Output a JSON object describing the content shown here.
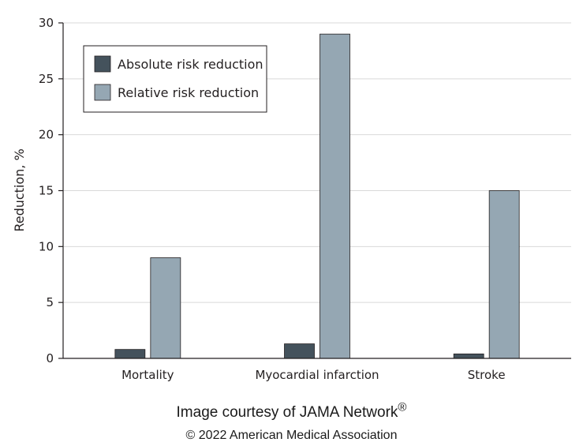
{
  "chart_data": {
    "type": "bar",
    "title": "",
    "xlabel": "",
    "ylabel": "Reduction, %",
    "ylim": [
      0,
      30
    ],
    "yticks": [
      0,
      5,
      10,
      15,
      20,
      25,
      30
    ],
    "categories": [
      "Mortality",
      "Myocardial infarction",
      "Stroke"
    ],
    "series": [
      {
        "name": "Absolute risk reduction",
        "values": [
          0.8,
          1.3,
          0.4
        ],
        "color": "#44525c"
      },
      {
        "name": "Relative risk reduction",
        "values": [
          9,
          29,
          15
        ],
        "color": "#95a7b3"
      }
    ],
    "grid": true,
    "legend": "top-left"
  },
  "credits": {
    "line1": "Image courtesy of JAMA Network",
    "line1_mark": "®",
    "line2": "© 2022 American Medical Association"
  }
}
